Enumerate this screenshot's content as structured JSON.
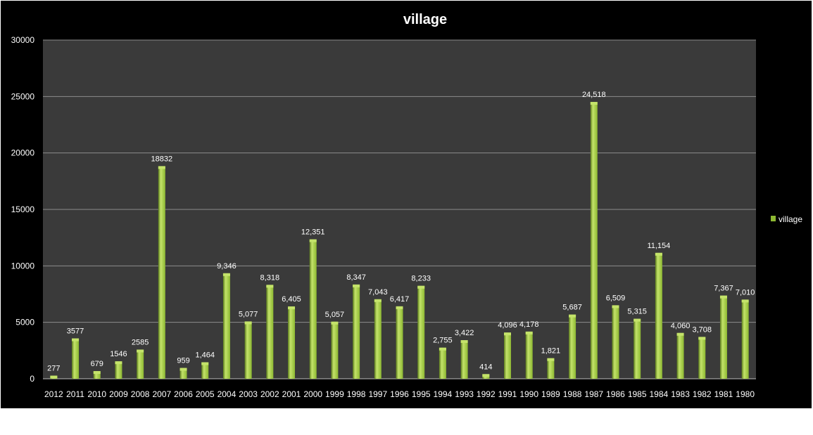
{
  "chart_data": {
    "type": "bar",
    "title": "village",
    "categories": [
      "2012",
      "2011",
      "2010",
      "2009",
      "2008",
      "2007",
      "2006",
      "2005",
      "2004",
      "2003",
      "2002",
      "2001",
      "2000",
      "1999",
      "1998",
      "1997",
      "1996",
      "1995",
      "1994",
      "1993",
      "1992",
      "1991",
      "1990",
      "1989",
      "1988",
      "1987",
      "1986",
      "1985",
      "1984",
      "1983",
      "1982",
      "1981",
      "1980"
    ],
    "series": [
      {
        "name": "village",
        "values": [
          277,
          3577,
          679,
          1546,
          2585,
          18832,
          959,
          1464,
          9346,
          5077,
          8318,
          6405,
          12351,
          5057,
          8347,
          7043,
          6417,
          8233,
          2755,
          3422,
          414,
          4096,
          4178,
          1821,
          5687,
          24518,
          6509,
          5315,
          11154,
          4060,
          3708,
          7367,
          7010
        ],
        "data_labels": [
          "277",
          "3577",
          "679",
          "1546",
          "2585",
          "18832",
          "959",
          "1,464",
          "9,346",
          "5,077",
          "8,318",
          "6,405",
          "12,351",
          "5,057",
          "8,347",
          "7,043",
          "6,417",
          "8,233",
          "2,755",
          "3,422",
          "414",
          "4,096",
          "4,178",
          "1,821",
          "5,687",
          "24,518",
          "6,509",
          "5,315",
          "11,154",
          "4,060",
          "3,708",
          "7,367",
          "7,010"
        ]
      }
    ],
    "ylim": [
      0,
      30000
    ],
    "yticks": [
      "0",
      "5000",
      "10000",
      "15000",
      "20000",
      "25000",
      "30000"
    ],
    "grid": true,
    "legend_position": "right",
    "colors": {
      "page_background": "#000000",
      "plot_background": "#3a3a3a",
      "gridline": "#8c8c8c",
      "bar_main": "#8db832",
      "bar_light": "#c4e36a",
      "bar_dark": "#5c7d1c",
      "text": "#ffffff"
    }
  }
}
